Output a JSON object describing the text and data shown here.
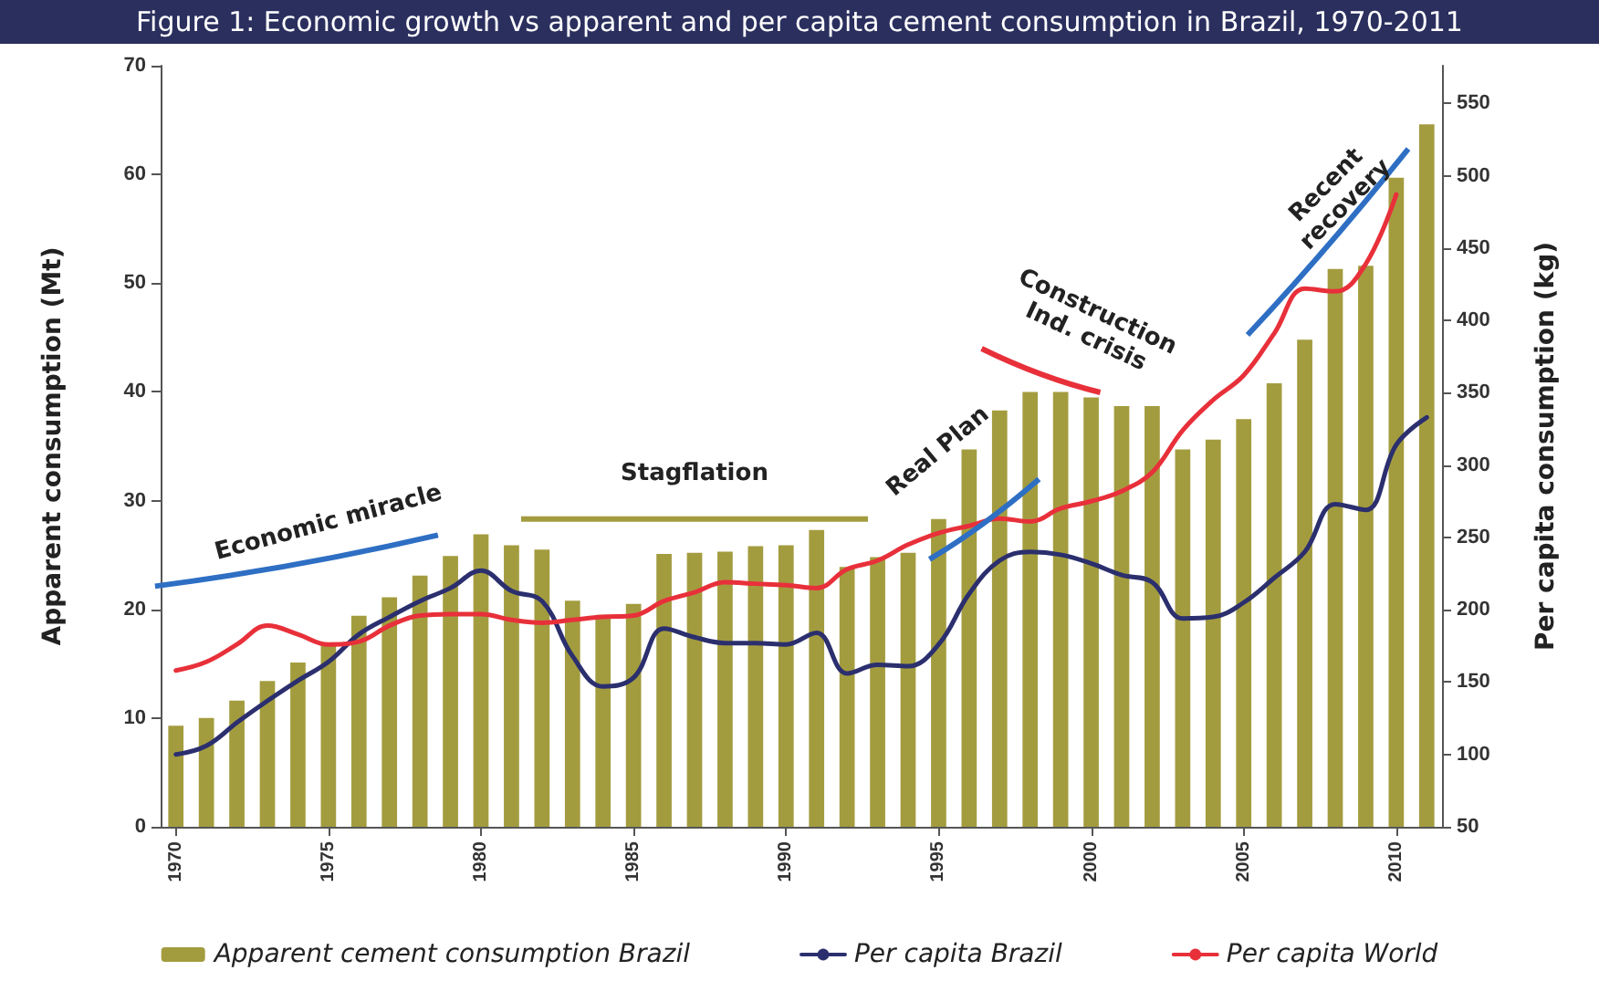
{
  "chart_data": {
    "type": "bar",
    "title": "Figure 1: Economic growth vs apparent and per capita cement consumption in Brazil, 1970-2011",
    "ylabel": "Apparent consumption (Mt)",
    "y2label": "Per capita consumption (kg)",
    "categories": [
      "1970",
      null,
      null,
      null,
      null,
      "1975",
      null,
      null,
      null,
      null,
      "1980",
      null,
      null,
      null,
      null,
      "1985",
      null,
      null,
      null,
      null,
      "1990",
      null,
      null,
      null,
      null,
      "1995",
      null,
      null,
      null,
      null,
      "2000",
      null,
      null,
      null,
      null,
      "2005",
      null,
      null,
      null,
      null,
      "2010",
      null
    ],
    "series": [
      {
        "name": "Apparent cement consumption Brazil",
        "color": "#a39c3f",
        "values": [
          9.3,
          10,
          11.6,
          13.4,
          15.1,
          16.8,
          19.4,
          21.1,
          23.1,
          24.9,
          26.9,
          25.9,
          25.5,
          20.8,
          19.5,
          20.5,
          25.1,
          25.2,
          25.3,
          25.8,
          25.9,
          27.3,
          23.9,
          24.8,
          25.2,
          28.3,
          34.7,
          38.3,
          40.0,
          40.0,
          39.5,
          38.7,
          38.7,
          34.7,
          35.6,
          37.5,
          40.8,
          44.8,
          51.3,
          51.6,
          59.7,
          64.6
        ]
      },
      {
        "name": "Per capita Brazil",
        "type": "line",
        "axis": "y2",
        "color": "#2b2f6e",
        "values": [
          100,
          106,
          122,
          137,
          151,
          164,
          183,
          195,
          206,
          215,
          227,
          213,
          206,
          168,
          147,
          153,
          187,
          181,
          177,
          177,
          176,
          184,
          156,
          162,
          161,
          176,
          211,
          234,
          240,
          238,
          232,
          224,
          219,
          194,
          195,
          205,
          222,
          240,
          273,
          269,
          314,
          333
        ]
      },
      {
        "name": "Per capita World",
        "type": "line",
        "axis": "y2",
        "color": "#e8303a",
        "values": [
          158,
          164,
          176,
          189,
          183,
          176,
          178,
          189,
          196,
          197,
          197,
          193,
          191,
          193,
          195,
          196,
          206,
          212,
          219,
          218,
          217,
          215,
          228,
          234,
          245,
          253,
          258,
          263,
          261,
          270,
          275,
          282,
          295,
          324,
          345,
          362,
          391,
          422,
          420,
          439,
          487,
          null
        ]
      }
    ],
    "ylim": [
      0,
      70
    ],
    "yticks": [
      0,
      10,
      20,
      30,
      40,
      50,
      60,
      70
    ],
    "y2lim": [
      50,
      576
    ],
    "y2ticks": [
      50,
      100,
      150,
      200,
      250,
      300,
      350,
      400,
      450,
      500,
      550
    ],
    "grid": false,
    "legend": "bottom",
    "marker": "none",
    "line_style": "solid",
    "annotations": [
      "Economic miracle",
      "Stagflation",
      "Real Plan",
      "Construction Ind. crisis",
      "Recent recovery"
    ]
  }
}
